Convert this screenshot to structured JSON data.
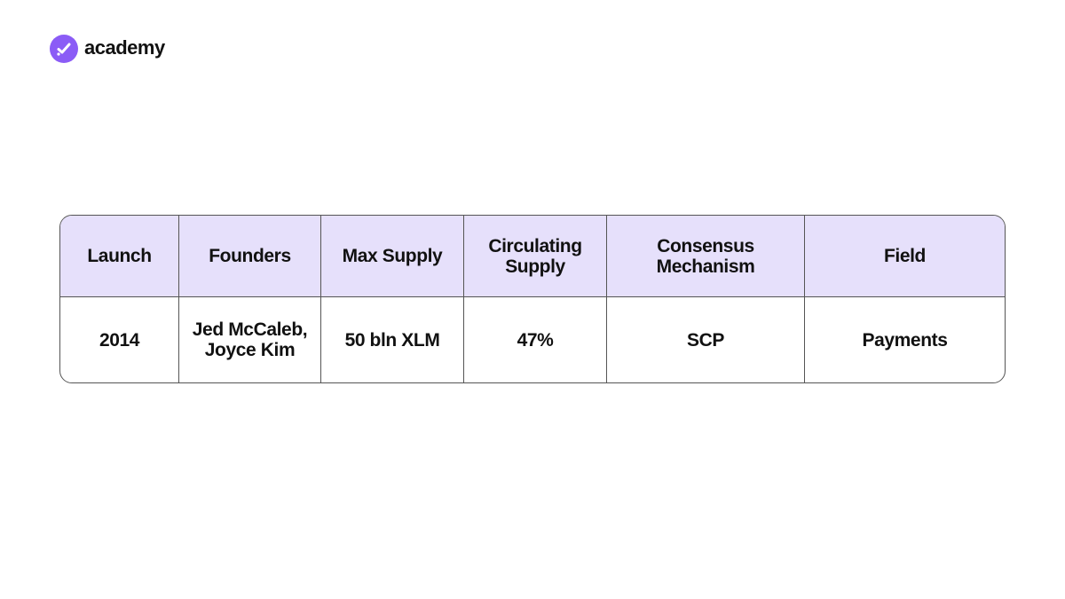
{
  "header": {
    "brand": "academy"
  },
  "table": {
    "columns": [
      "Launch",
      "Founders",
      "Max Supply",
      "Circulating\nSupply",
      "Consensus\nMechanism",
      "Field"
    ],
    "rows": [
      [
        "2014",
        "Jed McCaleb,\nJoyce Kim",
        "50 bln XLM",
        "47%",
        "SCP",
        "Payments"
      ]
    ]
  }
}
